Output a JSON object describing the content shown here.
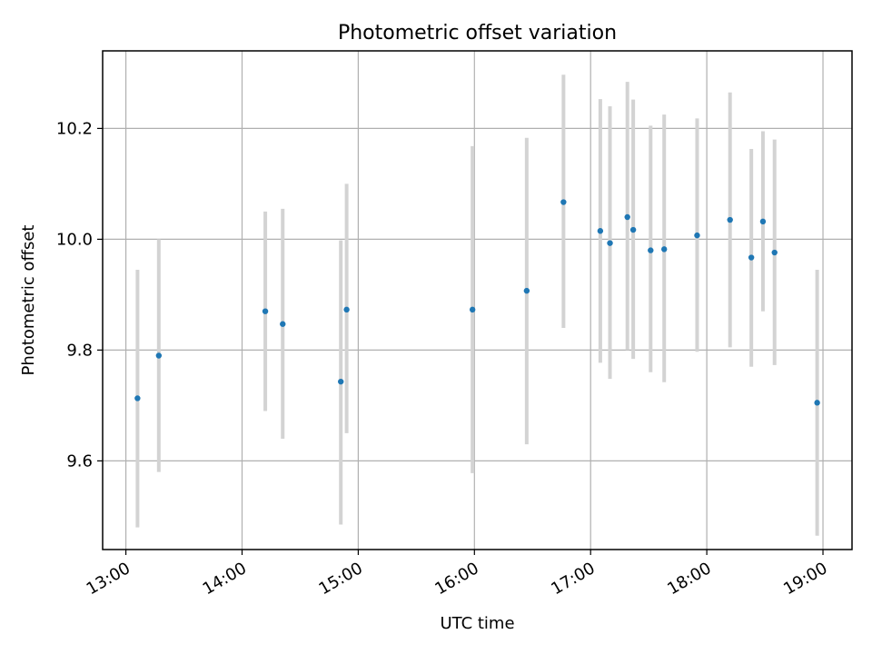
{
  "chart_data": {
    "type": "scatter",
    "title": "Photometric offset variation",
    "xlabel": "UTC time",
    "ylabel": "Photometric offset",
    "x_axis": "time",
    "xlim": [
      "12:48",
      "19:15"
    ],
    "ylim": [
      9.44,
      10.34
    ],
    "x_ticks": [
      "13:00",
      "14:00",
      "15:00",
      "16:00",
      "17:00",
      "18:00",
      "19:00"
    ],
    "y_ticks": [
      9.6,
      9.8,
      10.0,
      10.2
    ],
    "grid": true,
    "colors": {
      "marker": "#1f77b4",
      "errorbar": "#d3d3d3",
      "grid": "#b0b0b0"
    },
    "points": [
      {
        "x": "13:06",
        "y": 9.713,
        "ylo": 9.48,
        "yhi": 9.945
      },
      {
        "x": "13:17",
        "y": 9.79,
        "ylo": 9.58,
        "yhi": 10.0
      },
      {
        "x": "14:12",
        "y": 9.87,
        "ylo": 9.69,
        "yhi": 10.05
      },
      {
        "x": "14:21",
        "y": 9.847,
        "ylo": 9.64,
        "yhi": 10.055
      },
      {
        "x": "14:51",
        "y": 9.743,
        "ylo": 9.485,
        "yhi": 9.998
      },
      {
        "x": "14:54",
        "y": 9.873,
        "ylo": 9.65,
        "yhi": 10.1
      },
      {
        "x": "15:59",
        "y": 9.873,
        "ylo": 9.578,
        "yhi": 10.168
      },
      {
        "x": "16:27",
        "y": 9.907,
        "ylo": 9.63,
        "yhi": 10.183
      },
      {
        "x": "16:46",
        "y": 10.067,
        "ylo": 9.84,
        "yhi": 10.297
      },
      {
        "x": "17:05",
        "y": 10.015,
        "ylo": 9.777,
        "yhi": 10.253
      },
      {
        "x": "17:10",
        "y": 9.993,
        "ylo": 9.748,
        "yhi": 10.24
      },
      {
        "x": "17:19",
        "y": 10.04,
        "ylo": 9.8,
        "yhi": 10.284
      },
      {
        "x": "17:22",
        "y": 10.017,
        "ylo": 9.784,
        "yhi": 10.252
      },
      {
        "x": "17:31",
        "y": 9.98,
        "ylo": 9.76,
        "yhi": 10.205
      },
      {
        "x": "17:38",
        "y": 9.982,
        "ylo": 9.742,
        "yhi": 10.225
      },
      {
        "x": "17:55",
        "y": 10.007,
        "ylo": 9.797,
        "yhi": 10.218
      },
      {
        "x": "18:12",
        "y": 10.035,
        "ylo": 9.805,
        "yhi": 10.265
      },
      {
        "x": "18:23",
        "y": 9.967,
        "ylo": 9.77,
        "yhi": 10.163
      },
      {
        "x": "18:29",
        "y": 10.032,
        "ylo": 9.87,
        "yhi": 10.195
      },
      {
        "x": "18:35",
        "y": 9.976,
        "ylo": 9.773,
        "yhi": 10.18
      },
      {
        "x": "18:57",
        "y": 9.705,
        "ylo": 9.465,
        "yhi": 9.945
      }
    ]
  }
}
